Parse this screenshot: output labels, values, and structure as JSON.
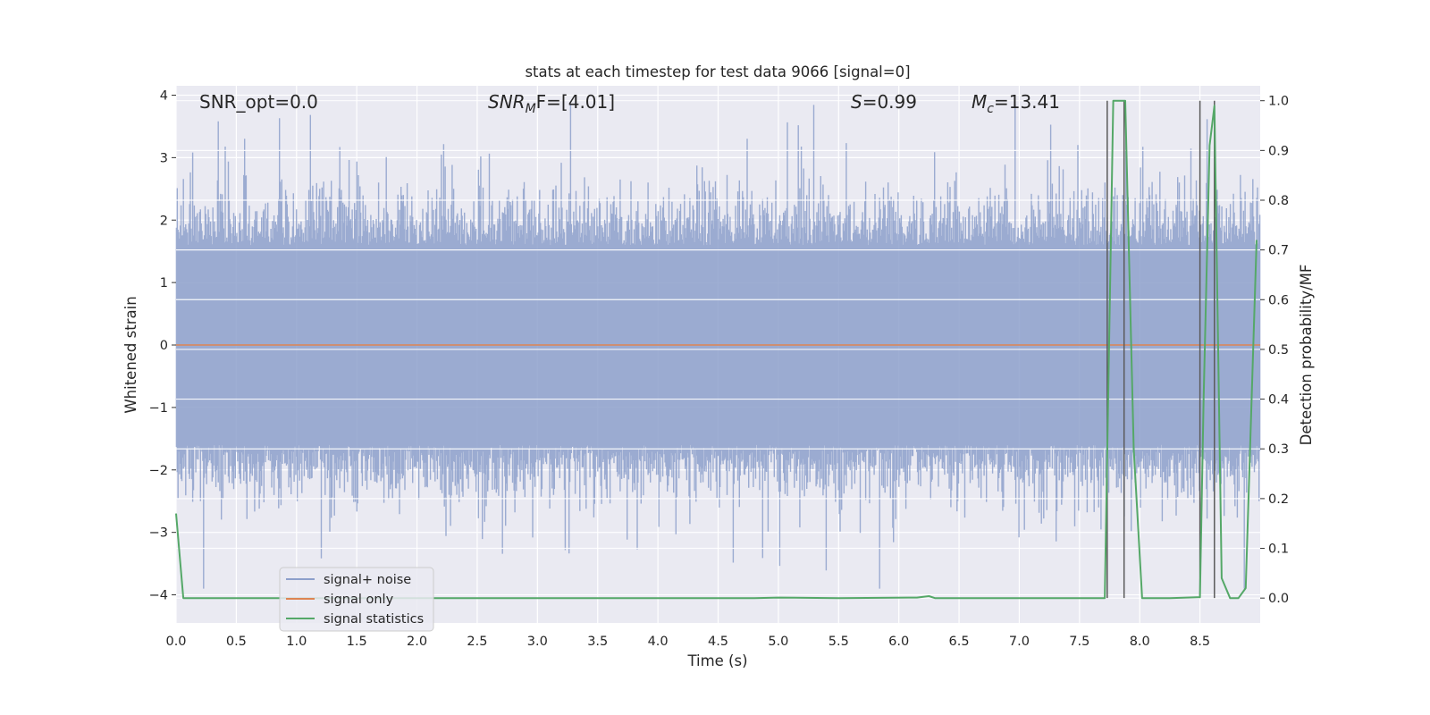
{
  "chart_data": {
    "type": "line",
    "title": "stats at each timestep for test data 9066 [signal=0]",
    "xlabel": "Time (s)",
    "ylabel": "Whitened strain",
    "y2label": "Detection probability/MF",
    "xlim": [
      0.0,
      9.0
    ],
    "ylim": [
      -4.45,
      4.15
    ],
    "y2lim": [
      -0.05,
      1.03
    ],
    "grid": true,
    "xticks": [
      0.0,
      0.5,
      1.0,
      1.5,
      2.0,
      2.5,
      3.0,
      3.5,
      4.0,
      4.5,
      5.0,
      5.5,
      6.0,
      6.5,
      7.0,
      7.5,
      8.0,
      8.5
    ],
    "xtick_labels": [
      "0.0",
      "0.5",
      "1.0",
      "1.5",
      "2.0",
      "2.5",
      "3.0",
      "3.5",
      "4.0",
      "4.5",
      "5.0",
      "5.5",
      "6.0",
      "6.5",
      "7.0",
      "7.5",
      "8.0",
      "8.5"
    ],
    "yticks": [
      4,
      3,
      2,
      1,
      0,
      -1,
      -2,
      -3,
      -4
    ],
    "ytick_labels": [
      "4",
      "3",
      "2",
      "1",
      "0",
      "−1",
      "−2",
      "−3",
      "−4"
    ],
    "y2ticks": [
      1.0,
      0.9,
      0.8,
      0.7,
      0.6,
      0.5,
      0.4,
      0.3,
      0.2,
      0.1,
      0.0
    ],
    "y2tick_labels": [
      "1.0",
      "0.9",
      "0.8",
      "0.7",
      "0.6",
      "0.5",
      "0.4",
      "0.3",
      "0.2",
      "0.1",
      "0.0"
    ],
    "legend": {
      "placement": "lower-left",
      "entries": [
        {
          "label": "signal+ noise",
          "color": "#8da0cb"
        },
        {
          "label": "signal only",
          "color": "#dd8452"
        },
        {
          "label": "signal statistics",
          "color": "#55a868"
        }
      ]
    },
    "annotations": {
      "snr_opt": "SNR_opt=0.0",
      "snr_mf_prefix": "SNR",
      "snr_mf_sub": "M",
      "snr_mf_suffix": "F=[4.01]",
      "s_prefix": "S",
      "s_suffix": "=0.99",
      "mc_prefix": "M",
      "mc_sub": "c",
      "mc_suffix": "=13.41"
    },
    "series": [
      {
        "name": "signal+ noise",
        "kind": "noise",
        "axis": "left",
        "color": "#8da0cb",
        "opacity": 0.85,
        "core_amplitude": 1.6,
        "typical_peak": 2.2,
        "max": 3.85,
        "min": -3.9
      },
      {
        "name": "signal only",
        "axis": "left",
        "color": "#dd8452",
        "x": [
          0.0,
          9.0
        ],
        "y": [
          0.0,
          0.0
        ]
      },
      {
        "name": "signal statistics",
        "axis": "right",
        "color": "#55a868",
        "x": [
          0.0,
          0.06,
          0.15,
          1.0,
          2.0,
          3.0,
          4.0,
          4.8,
          5.0,
          5.5,
          6.15,
          6.25,
          6.3,
          7.0,
          7.5,
          7.71,
          7.78,
          7.83,
          7.88,
          7.95,
          8.02,
          8.25,
          8.5,
          8.53,
          8.58,
          8.62,
          8.68,
          8.75,
          8.82,
          8.88,
          8.97
        ],
        "y": [
          0.17,
          0.0,
          0.0,
          0.0,
          0.0,
          0.0,
          0.0,
          0.0,
          0.001,
          0.0,
          0.001,
          0.004,
          0.0,
          0.0,
          0.0,
          0.0,
          1.0,
          1.0,
          1.0,
          0.3,
          0.0,
          0.0,
          0.002,
          0.4,
          0.91,
          0.99,
          0.04,
          0.0,
          0.0,
          0.02,
          0.72
        ]
      }
    ],
    "vlines": {
      "color": "#5a5a5a",
      "x": [
        7.73,
        7.87,
        8.5,
        8.62
      ],
      "y2_range": [
        0.0,
        1.0
      ]
    }
  }
}
